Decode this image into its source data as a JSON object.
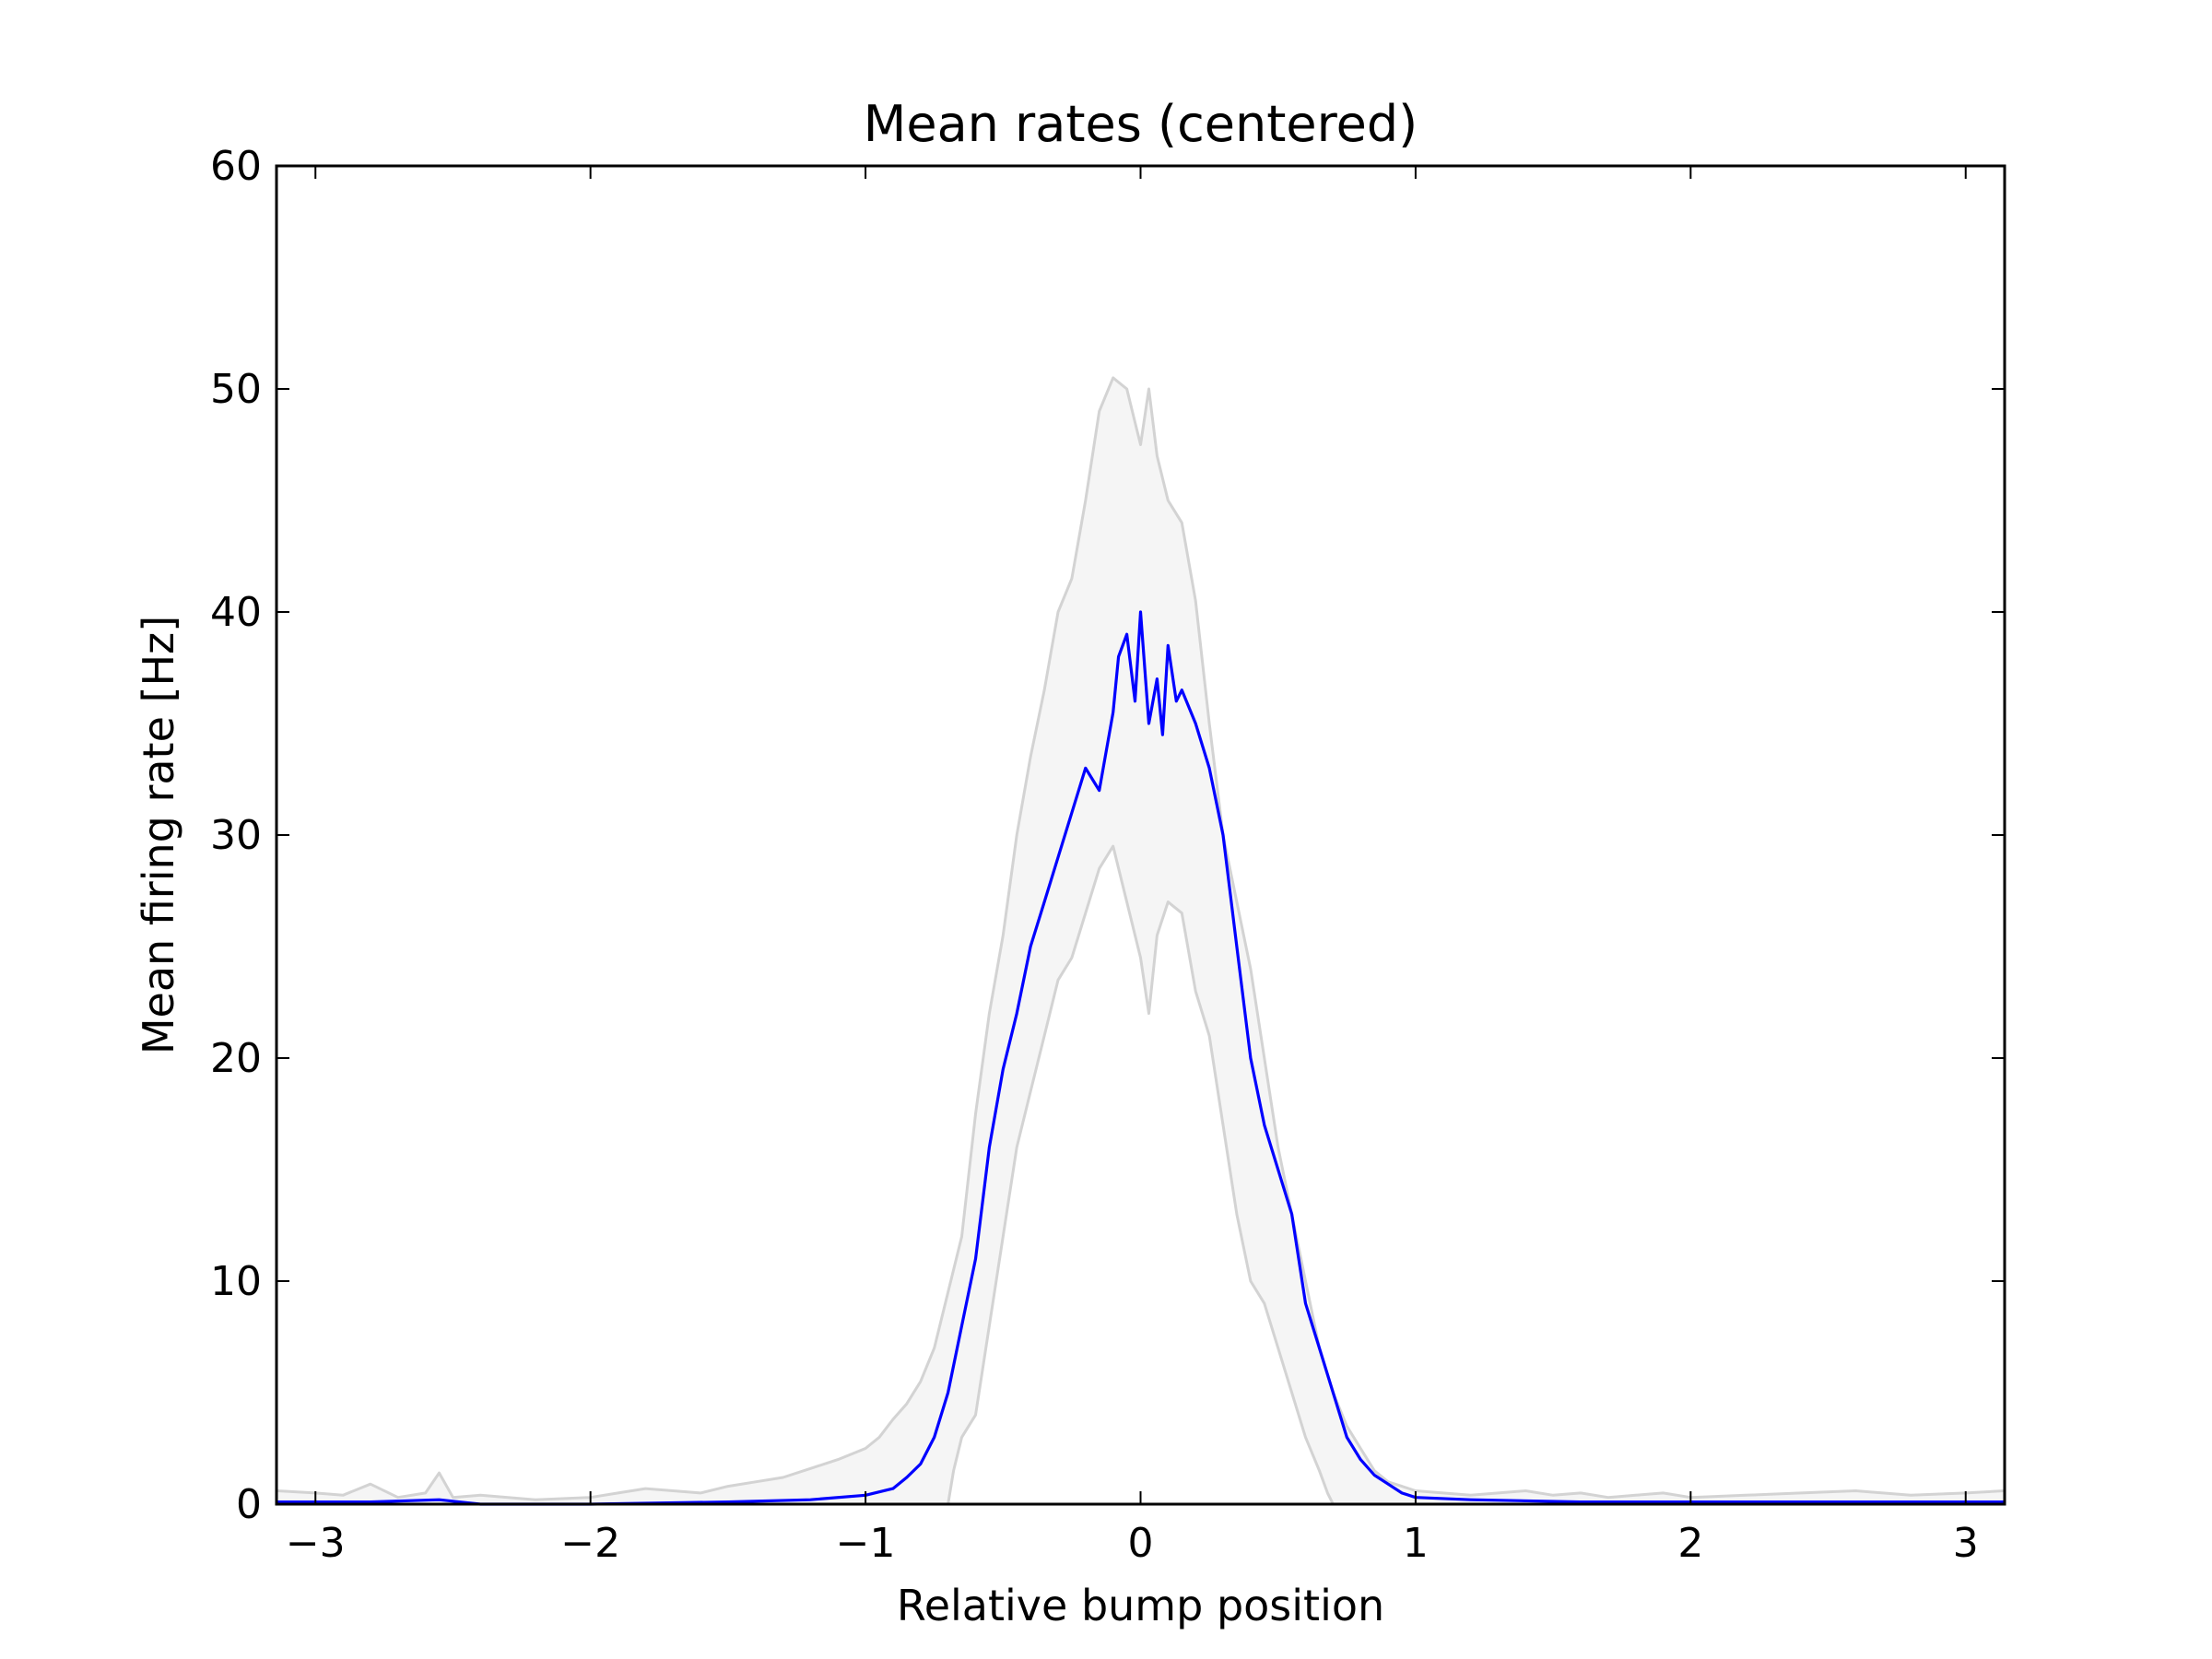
{
  "chart_data": {
    "type": "line",
    "title": "Mean rates (centered)",
    "xlabel": "Relative bump position",
    "ylabel": "Mean firing rate [Hz]",
    "xlim": [
      -3.14159,
      3.14159
    ],
    "ylim": [
      0,
      60
    ],
    "xticks": [
      -3,
      -2,
      -1,
      0,
      1,
      2,
      3
    ],
    "xtick_labels": [
      "−3",
      "−2",
      "−1",
      "0",
      "1",
      "2",
      "3"
    ],
    "yticks": [
      0,
      10,
      20,
      30,
      40,
      50,
      60
    ],
    "ytick_labels": [
      "0",
      "10",
      "20",
      "30",
      "40",
      "50",
      "60"
    ],
    "grid": false,
    "band_fill": "#f5f5f5",
    "series": [
      {
        "role": "upper",
        "color": "#d3d3d3",
        "x": [
          -3.14,
          -3.0,
          -2.9,
          -2.8,
          -2.7,
          -2.6,
          -2.55,
          -2.5,
          -2.4,
          -2.2,
          -2.0,
          -1.9,
          -1.8,
          -1.7,
          -1.6,
          -1.5,
          -1.4,
          -1.3,
          -1.2,
          -1.1,
          -1.0,
          -0.95,
          -0.9,
          -0.85,
          -0.8,
          -0.75,
          -0.7,
          -0.65,
          -0.6,
          -0.55,
          -0.5,
          -0.45,
          -0.4,
          -0.35,
          -0.3,
          -0.25,
          -0.2,
          -0.15,
          -0.1,
          -0.05,
          -0.02,
          0.0,
          0.03,
          0.06,
          0.1,
          0.15,
          0.2,
          0.25,
          0.3,
          0.35,
          0.4,
          0.45,
          0.5,
          0.55,
          0.6,
          0.65,
          0.7,
          0.75,
          0.8,
          0.85,
          0.9,
          0.95,
          1.0,
          1.1,
          1.2,
          1.3,
          1.4,
          1.5,
          1.6,
          1.7,
          1.8,
          1.9,
          2.0,
          2.2,
          2.4,
          2.6,
          2.8,
          3.0,
          3.14
        ],
        "y": [
          0.6,
          0.5,
          0.4,
          0.9,
          0.3,
          0.5,
          1.4,
          0.3,
          0.4,
          0.2,
          0.3,
          0.5,
          0.7,
          0.6,
          0.5,
          0.8,
          1.0,
          1.2,
          1.6,
          2.0,
          2.5,
          3.0,
          3.8,
          4.5,
          5.5,
          7.0,
          9.5,
          12.0,
          17.5,
          22.0,
          25.5,
          30.0,
          33.5,
          36.5,
          40.0,
          41.5,
          45.0,
          49.0,
          50.5,
          50.0,
          48.5,
          47.5,
          50.0,
          47.0,
          45.0,
          44.0,
          40.5,
          35.0,
          30.0,
          27.0,
          24.0,
          20.0,
          16.0,
          13.0,
          10.0,
          7.0,
          5.0,
          3.5,
          2.5,
          1.5,
          1.0,
          0.8,
          0.6,
          0.5,
          0.4,
          0.5,
          0.6,
          0.4,
          0.5,
          0.3,
          0.4,
          0.5,
          0.3,
          0.4,
          0.5,
          0.6,
          0.4,
          0.5,
          0.6
        ]
      },
      {
        "role": "lower",
        "color": "#d3d3d3",
        "x": [
          -3.14,
          -0.7,
          -0.68,
          -0.65,
          -0.6,
          -0.55,
          -0.5,
          -0.45,
          -0.4,
          -0.35,
          -0.3,
          -0.25,
          -0.2,
          -0.15,
          -0.1,
          -0.05,
          0.0,
          0.03,
          0.06,
          0.1,
          0.15,
          0.2,
          0.25,
          0.3,
          0.35,
          0.4,
          0.45,
          0.5,
          0.55,
          0.6,
          0.65,
          0.68,
          0.7,
          3.14
        ],
        "y": [
          0,
          0,
          1.5,
          3.0,
          4.0,
          8.0,
          12.0,
          16.0,
          18.5,
          21.0,
          23.5,
          24.5,
          26.5,
          28.5,
          29.5,
          27.0,
          24.5,
          22.0,
          25.5,
          27.0,
          26.5,
          23.0,
          21.0,
          17.0,
          13.0,
          10.0,
          9.0,
          7.0,
          5.0,
          3.0,
          1.5,
          0.5,
          0,
          0
        ]
      },
      {
        "role": "mean",
        "color": "#0000ff",
        "x": [
          -3.14,
          -3.0,
          -2.8,
          -2.55,
          -2.4,
          -2.0,
          -1.5,
          -1.2,
          -1.0,
          -0.9,
          -0.85,
          -0.8,
          -0.75,
          -0.7,
          -0.65,
          -0.6,
          -0.55,
          -0.5,
          -0.45,
          -0.4,
          -0.35,
          -0.3,
          -0.25,
          -0.2,
          -0.15,
          -0.1,
          -0.08,
          -0.05,
          -0.02,
          0.0,
          0.03,
          0.06,
          0.08,
          0.1,
          0.13,
          0.15,
          0.2,
          0.25,
          0.3,
          0.35,
          0.4,
          0.45,
          0.5,
          0.55,
          0.6,
          0.65,
          0.7,
          0.75,
          0.8,
          0.85,
          0.9,
          0.95,
          1.0,
          1.2,
          1.6,
          2.0,
          2.4,
          2.8,
          3.14
        ],
        "y": [
          0.1,
          0.1,
          0.1,
          0.2,
          0.0,
          0.0,
          0.1,
          0.2,
          0.4,
          0.7,
          1.2,
          1.8,
          3.0,
          5.0,
          8.0,
          11.0,
          16.0,
          19.5,
          22.0,
          25.0,
          27.0,
          29.0,
          31.0,
          33.0,
          32.0,
          35.5,
          38.0,
          39.0,
          36.0,
          40.0,
          35.0,
          37.0,
          34.5,
          38.5,
          36.0,
          36.5,
          35.0,
          33.0,
          30.0,
          25.0,
          20.0,
          17.0,
          15.0,
          13.0,
          9.0,
          7.0,
          5.0,
          3.0,
          2.0,
          1.3,
          0.9,
          0.5,
          0.3,
          0.2,
          0.1,
          0.1,
          0.1,
          0.1,
          0.1
        ]
      }
    ]
  }
}
